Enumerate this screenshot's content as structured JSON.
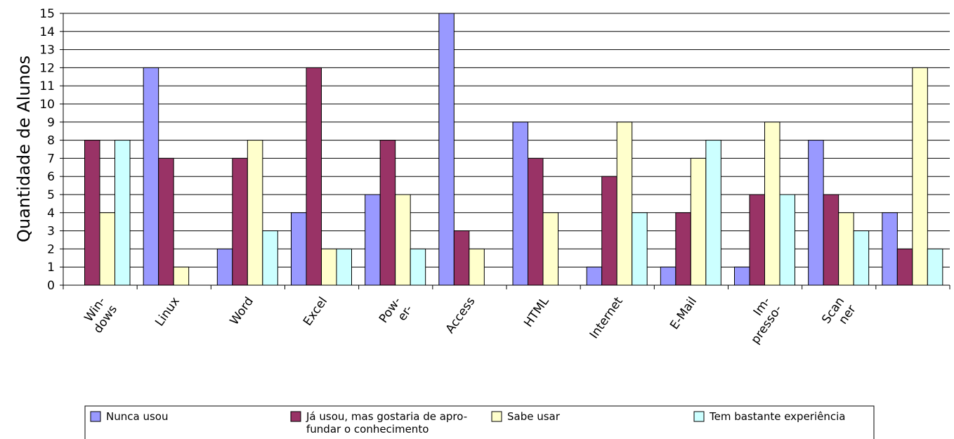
{
  "chart_data": {
    "type": "bar",
    "title": "",
    "xlabel": "",
    "ylabel": "Quantidade de Alunos",
    "ylim": [
      0,
      15
    ],
    "yticks": [
      0,
      1,
      2,
      3,
      4,
      5,
      6,
      7,
      8,
      9,
      10,
      11,
      12,
      13,
      14,
      15
    ],
    "grid": true,
    "legend_position": "bottom",
    "categories": [
      [
        "Win-",
        "dows"
      ],
      [
        "Linux"
      ],
      [
        "Word"
      ],
      [
        "Excel"
      ],
      [
        "Pow-",
        "er-"
      ],
      [
        "Access"
      ],
      [
        "HTML"
      ],
      [
        "Internet"
      ],
      [
        "E-Mail"
      ],
      [
        "Im-",
        "presso-"
      ],
      [
        "Scan",
        "ner"
      ],
      [
        ""
      ]
    ],
    "series": [
      {
        "name": "Nunca usou",
        "color": "#9999ff",
        "values": [
          0,
          12,
          2,
          4,
          5,
          15,
          9,
          1,
          1,
          1,
          8,
          4
        ]
      },
      {
        "name": [
          "Já usou, mas gostaria de apro-",
          "fundar o conhecimento"
        ],
        "color": "#993366",
        "values": [
          8,
          7,
          7,
          12,
          8,
          3,
          7,
          6,
          4,
          5,
          5,
          2
        ]
      },
      {
        "name": "Sabe usar",
        "color": "#ffffcc",
        "values": [
          4,
          1,
          8,
          2,
          5,
          2,
          4,
          9,
          7,
          9,
          4,
          12
        ]
      },
      {
        "name": "Tem bastante experiência",
        "color": "#ccffff",
        "values": [
          8,
          0,
          3,
          2,
          2,
          0,
          0,
          4,
          8,
          5,
          3,
          2
        ]
      }
    ]
  }
}
